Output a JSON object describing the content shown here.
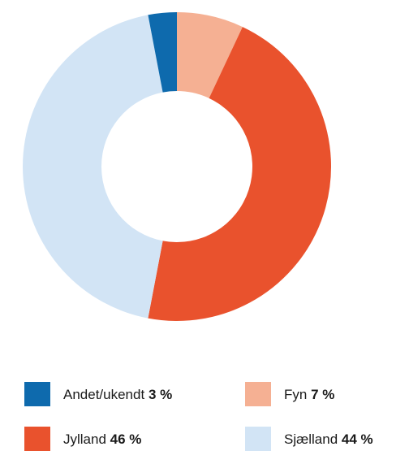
{
  "chart_data": {
    "type": "donut",
    "categories": [
      "Fyn",
      "Jylland",
      "Sjælland",
      "Andet/ukendt"
    ],
    "values": [
      7,
      46,
      44,
      3
    ],
    "value_labels": [
      "7 %",
      "46 %",
      "44 %",
      "3 %"
    ],
    "colors": [
      "#f5b093",
      "#e9522d",
      "#d2e4f5",
      "#0e6aad"
    ]
  }
}
